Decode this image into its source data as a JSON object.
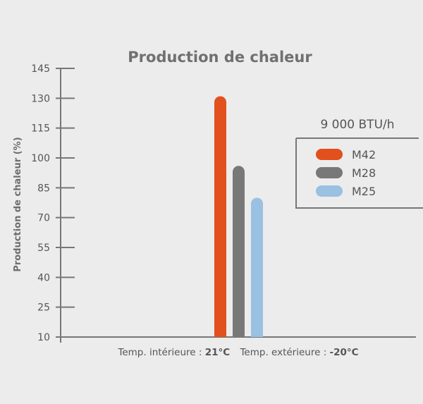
{
  "chart_data": {
    "type": "bar",
    "title": "Production de chaleur",
    "ylabel": "Production de chaleur (%)",
    "ylim": [
      10,
      145
    ],
    "yticks": [
      10,
      25,
      40,
      55,
      70,
      85,
      100,
      115,
      130,
      145
    ],
    "x_caption": {
      "indoor_label": "Temp. intérieure :",
      "indoor_value": "21°C",
      "outdoor_label": "Temp. extérieure :",
      "outdoor_value": "-20°C"
    },
    "legend": {
      "title": "9 000 BTU/h",
      "placement": "right"
    },
    "series": [
      {
        "name": "M42",
        "value": 131,
        "color": "#e2501d"
      },
      {
        "name": "M28",
        "value": 96,
        "color": "#787878"
      },
      {
        "name": "M25",
        "value": 80,
        "color": "#9ac0e2"
      }
    ],
    "grid": false
  }
}
